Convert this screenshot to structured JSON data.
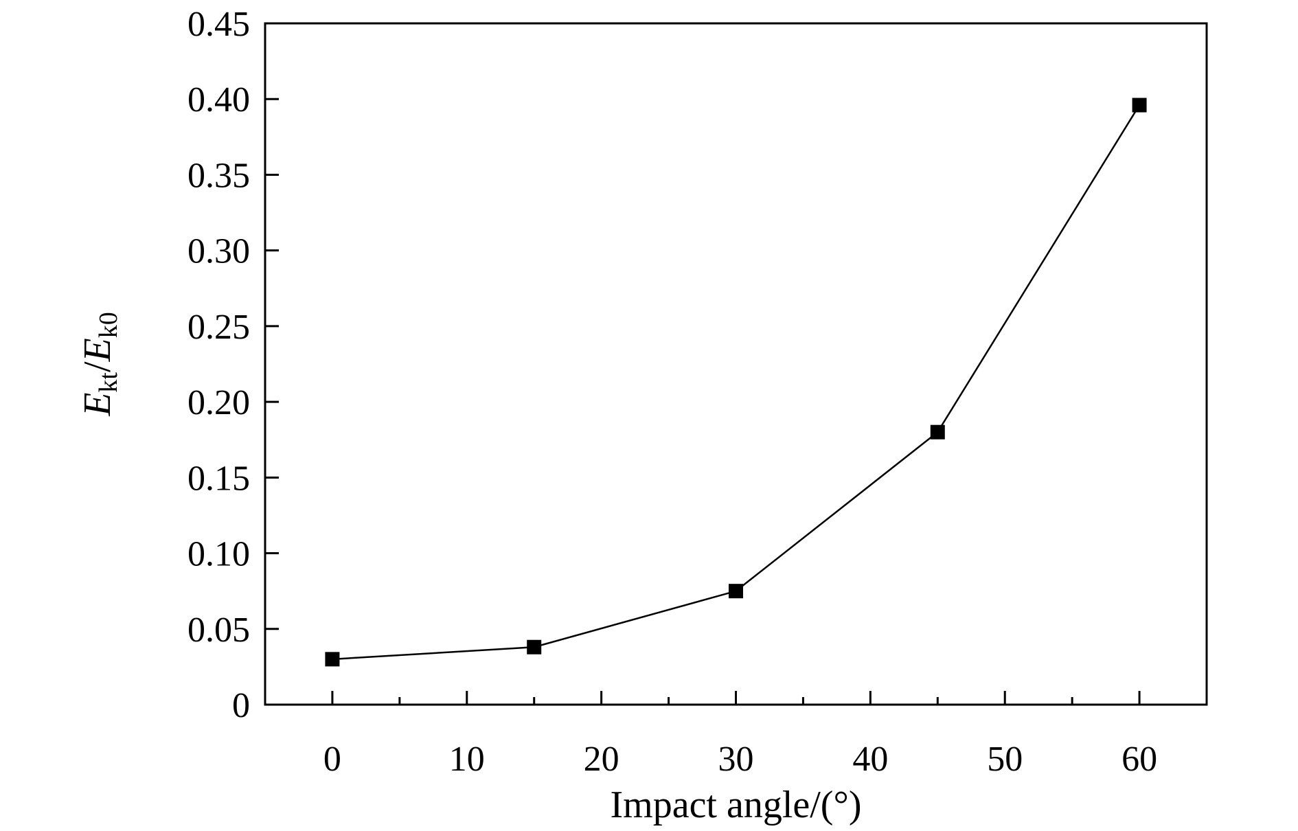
{
  "chart_data": {
    "type": "line",
    "title": "",
    "xlabel": "Impact angle/(°)",
    "ylabel": {
      "parts": [
        {
          "text": "E",
          "italic": true,
          "sub": false
        },
        {
          "text": "kt",
          "italic": false,
          "sub": true
        },
        {
          "text": "/",
          "italic": false,
          "sub": false
        },
        {
          "text": "E",
          "italic": true,
          "sub": false
        },
        {
          "text": "k0",
          "italic": false,
          "sub": true
        }
      ]
    },
    "xlim": [
      -5,
      65
    ],
    "ylim": [
      0,
      0.45
    ],
    "xticks": [
      0,
      10,
      20,
      30,
      40,
      50,
      60
    ],
    "xtick_labels": [
      "0",
      "10",
      "20",
      "30",
      "40",
      "50",
      "60"
    ],
    "yticks": [
      0,
      0.05,
      0.1,
      0.15,
      0.2,
      0.25,
      0.3,
      0.35,
      0.4,
      0.45
    ],
    "ytick_labels": [
      "0",
      "0.05",
      "0.10",
      "0.15",
      "0.20",
      "0.25",
      "0.30",
      "0.35",
      "0.40",
      "0.45"
    ],
    "grid": false,
    "series": [
      {
        "marker": "square",
        "color": "#000000",
        "x": [
          0,
          15,
          30,
          45,
          60
        ],
        "y": [
          0.03,
          0.038,
          0.075,
          0.18,
          0.396
        ]
      }
    ]
  }
}
